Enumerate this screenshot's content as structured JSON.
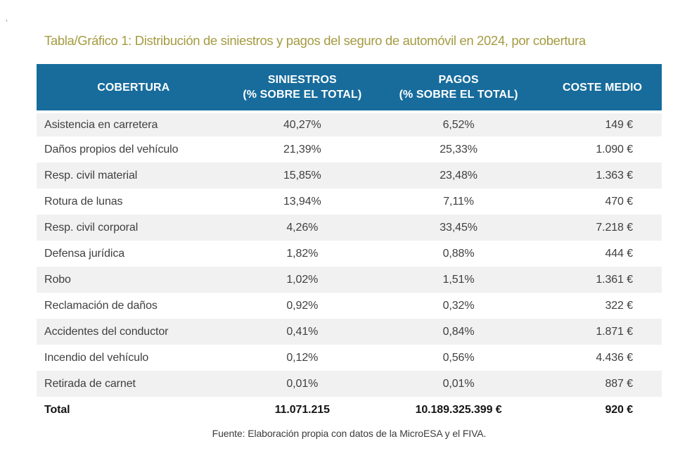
{
  "artifact_mark": "’",
  "chart_data": {
    "type": "table",
    "title": "Tabla/Gráfico 1: Distribución de siniestros y pagos del seguro de automóvil en 2024, por cobertura",
    "columns": [
      {
        "label": "COBERTURA",
        "sublabel": ""
      },
      {
        "label": "SINIESTROS",
        "sublabel": "(% SOBRE EL TOTAL)"
      },
      {
        "label": "PAGOS",
        "sublabel": "(% SOBRE EL TOTAL)"
      },
      {
        "label": "COSTE MEDIO",
        "sublabel": ""
      }
    ],
    "rows": [
      {
        "cobertura": "Asistencia en carretera",
        "siniestros": "40,27%",
        "pagos": "6,52%",
        "coste_medio": "149 €"
      },
      {
        "cobertura": "Daños propios del vehículo",
        "siniestros": "21,39%",
        "pagos": "25,33%",
        "coste_medio": "1.090 €"
      },
      {
        "cobertura": "Resp. civil material",
        "siniestros": "15,85%",
        "pagos": "23,48%",
        "coste_medio": "1.363 €"
      },
      {
        "cobertura": "Rotura de lunas",
        "siniestros": "13,94%",
        "pagos": "7,11%",
        "coste_medio": "470 €"
      },
      {
        "cobertura": "Resp. civil corporal",
        "siniestros": "4,26%",
        "pagos": "33,45%",
        "coste_medio": "7.218 €"
      },
      {
        "cobertura": "Defensa jurídica",
        "siniestros": "1,82%",
        "pagos": "0,88%",
        "coste_medio": "444 €"
      },
      {
        "cobertura": "Robo",
        "siniestros": "1,02%",
        "pagos": "1,51%",
        "coste_medio": "1.361 €"
      },
      {
        "cobertura": "Reclamación de daños",
        "siniestros": "0,92%",
        "pagos": "0,32%",
        "coste_medio": "322 €"
      },
      {
        "cobertura": "Accidentes del conductor",
        "siniestros": "0,41%",
        "pagos": "0,84%",
        "coste_medio": "1.871 €"
      },
      {
        "cobertura": "Incendio del vehículo",
        "siniestros": "0,12%",
        "pagos": "0,56%",
        "coste_medio": "4.436 €"
      },
      {
        "cobertura": "Retirada de carnet",
        "siniestros": "0,01%",
        "pagos": "0,01%",
        "coste_medio": "887 €"
      }
    ],
    "total": {
      "label": "Total",
      "siniestros": "11.071.215",
      "pagos": "10.189.325.399 €",
      "coste_medio": "920 €"
    },
    "source": "Fuente: Elaboración propia con datos de la MicroESA y el FIVA."
  },
  "colors": {
    "header_bg": "#176C9C",
    "header_text": "#FFFFFF",
    "row_stripe": "#F1F1F1",
    "title_text": "#A49B42",
    "body_text": "#3F3F3F",
    "total_text": "#151515"
  }
}
